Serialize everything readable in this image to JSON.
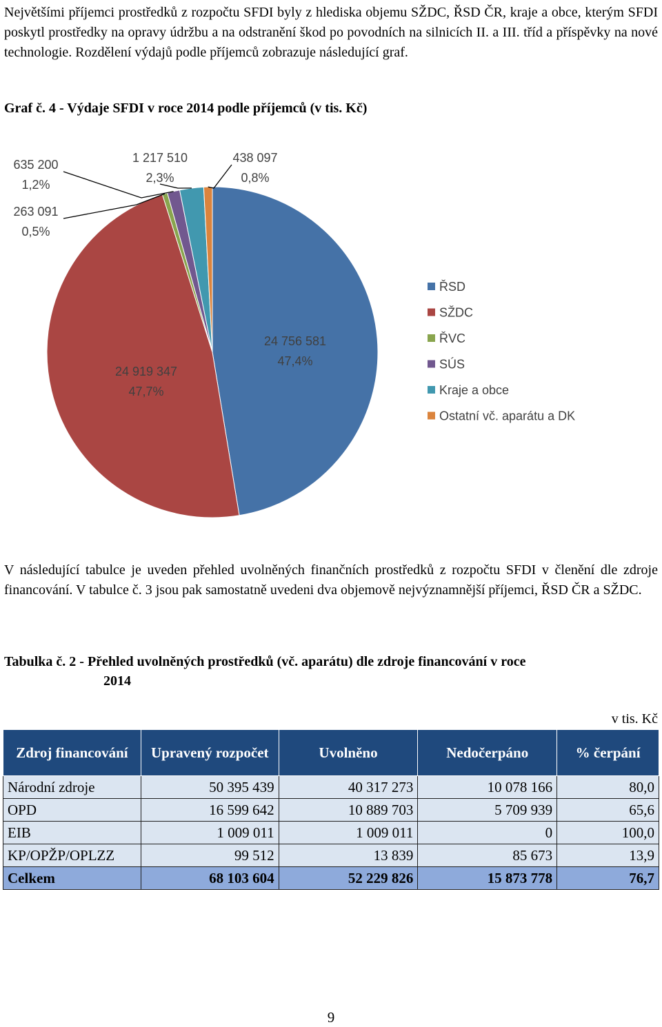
{
  "intro": "Největšími příjemci prostředků z rozpočtu SFDI byly z hlediska objemu SŽDC, ŘSD ČR, kraje a obce, kterým SFDI poskytl prostředky na opravy údržbu a na odstranění škod po povodních na silnicích II. a III. tříd a příspěvky na nové technologie. Rozdělení výdajů podle příjemců zobrazuje následující graf.",
  "chart_caption": "Graf č. 4 - Výdaje SFDI v roce 2014 podle příjemců (v tis. Kč)",
  "chart_data": {
    "type": "pie",
    "title": "",
    "slices": [
      {
        "name": "ŘSD",
        "value": 24756581,
        "value_label": "24 756 581",
        "percent_label": "47,4%",
        "color": "#4572a7"
      },
      {
        "name": "SŽDC",
        "value": 24919347,
        "value_label": "24 919 347",
        "percent_label": "47,7%",
        "color": "#aa4643"
      },
      {
        "name": "ŘVC",
        "value": 263091,
        "value_label": "263 091",
        "percent_label": "0,5%",
        "color": "#89a54e"
      },
      {
        "name": "SÚS",
        "value": 635200,
        "value_label": "635 200",
        "percent_label": "1,2%",
        "color": "#71588f"
      },
      {
        "name": "Kraje a obce",
        "value": 1217510,
        "value_label": "1 217 510",
        "percent_label": "2,3%",
        "color": "#4198af"
      },
      {
        "name": "Ostatní vč. aparátu a DK",
        "value": 438097,
        "value_label": "438 097",
        "percent_label": "0,8%",
        "color": "#db843d"
      }
    ],
    "legend_position": "right"
  },
  "table_intro": "V následující tabulce je uveden přehled uvolněných finančních prostředků z rozpočtu SFDI v členění dle zdroje financování. V tabulce č. 3 jsou pak samostatně uvedeni dva objemově nejvýznamnější příjemci, ŘSD ČR a SŽDC.",
  "table_caption_line1": "Tabulka č. 2 - Přehled uvolněných prostředků (vč. aparátu) dle zdroje financování v roce",
  "table_caption_line2": "2014",
  "table_unit": "v tis. Kč",
  "table": {
    "headers": [
      "Zdroj financování",
      "Upravený rozpočet",
      "Uvolněno",
      "Nedočerpáno",
      "% čerpání"
    ],
    "rows": [
      [
        "Národní zdroje",
        "50 395 439",
        "40 317 273",
        "10 078 166",
        "80,0"
      ],
      [
        "OPD",
        "16 599 642",
        "10 889 703",
        "5 709 939",
        "65,6"
      ],
      [
        "EIB",
        "1 009 011",
        "1 009 011",
        "0",
        "100,0"
      ],
      [
        "KP/OPŽP/OPLZZ",
        "99 512",
        "13 839",
        "85 673",
        "13,9"
      ]
    ],
    "total": [
      "Celkem",
      "68 103 604",
      "52 229 826",
      "15 873 778",
      "76,7"
    ]
  },
  "page_number": "9"
}
